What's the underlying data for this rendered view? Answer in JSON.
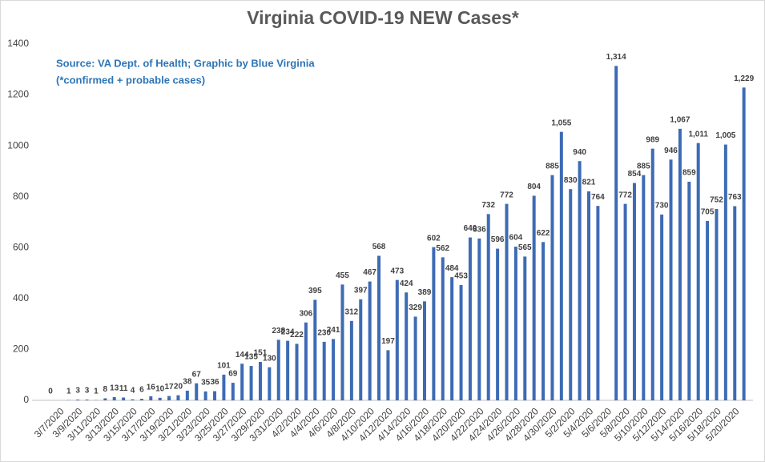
{
  "chart_data": {
    "type": "bar",
    "title": "Virginia COVID-19 NEW Cases*",
    "annotations": [
      "Source: VA Dept. of Health; Graphic by Blue Virginia",
      "(*confirmed + probable cases)"
    ],
    "categories": [
      null,
      "3/7/2020",
      null,
      "3/9/2020",
      null,
      "3/11/2020",
      null,
      "3/13/2020",
      null,
      "3/15/2020",
      null,
      "3/17/2020",
      null,
      "3/19/2020",
      null,
      "3/21/2020",
      null,
      "3/23/2020",
      null,
      "3/25/2020",
      null,
      "3/27/2020",
      null,
      "3/29/2020",
      null,
      "3/31/2020",
      null,
      "4/2/2020",
      null,
      "4/4/2020",
      null,
      "4/6/2020",
      null,
      "4/8/2020",
      null,
      "4/10/2020",
      null,
      "4/12/2020",
      null,
      "4/14/2020",
      null,
      "4/16/2020",
      null,
      "4/18/2020",
      null,
      "4/20/2020",
      null,
      "4/22/2020",
      null,
      "4/24/2020",
      null,
      "4/26/2020",
      null,
      "4/28/2020",
      null,
      "4/30/2020",
      null,
      "5/2/2020",
      null,
      "5/4/2020",
      null,
      "5/6/2020",
      null,
      "5/8/2020",
      null,
      "5/10/2020",
      null,
      "5/12/2020",
      null,
      "5/14/2020",
      null,
      "5/16/2020",
      null,
      "5/18/2020",
      null,
      "5/20/2020",
      null
    ],
    "values": [
      0,
      null,
      1,
      3,
      3,
      1,
      8,
      13,
      11,
      4,
      6,
      16,
      10,
      17,
      20,
      38,
      67,
      35,
      36,
      101,
      69,
      144,
      135,
      151,
      130,
      238,
      234,
      222,
      306,
      395,
      230,
      241,
      455,
      312,
      397,
      467,
      568,
      197,
      473,
      424,
      329,
      389,
      602,
      562,
      484,
      453,
      640,
      636,
      732,
      596,
      772,
      604,
      565,
      804,
      622,
      885,
      1055,
      830,
      940,
      821,
      764,
      null,
      1314,
      772,
      854,
      885,
      989,
      730,
      946,
      1067,
      859,
      1011,
      705,
      752,
      1005,
      763,
      1229
    ],
    "value_labels": [
      "0",
      null,
      "1",
      "3",
      "3",
      "1",
      "8",
      "13",
      "11",
      "4",
      "6",
      "16",
      "10",
      "17",
      "20",
      "38",
      "67",
      "35",
      "36",
      "101",
      "69",
      "144",
      "135",
      "151",
      "130",
      "238",
      "234",
      "222",
      "306",
      "395",
      "230",
      "241",
      "455",
      "312",
      "397",
      "467",
      "568",
      "197",
      "473",
      "424",
      "329",
      "389",
      "602",
      "562",
      "484",
      "453",
      "640",
      "636",
      "732",
      "596",
      "772",
      "604",
      "565",
      "804",
      "622",
      "885",
      "1,055",
      "830",
      "940",
      "821",
      "764",
      null,
      "1,314",
      "772",
      "854",
      "885",
      "989",
      "730",
      "946",
      "1,067",
      "859",
      "1,011",
      "705",
      "752",
      "1,005",
      "763",
      "1,229"
    ],
    "color": "#3d6bb5",
    "ylim": [
      0,
      1400
    ],
    "yticks": [
      0,
      200,
      400,
      600,
      800,
      1000,
      1200,
      1400
    ],
    "grid": false
  }
}
